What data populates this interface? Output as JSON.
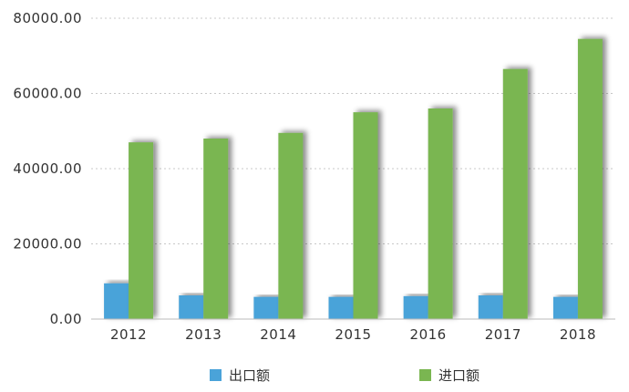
{
  "chart_data": {
    "type": "bar",
    "title": "",
    "xlabel": "",
    "ylabel": "",
    "categories": [
      "2012",
      "2013",
      "2014",
      "2015",
      "2016",
      "2017",
      "2018"
    ],
    "series": [
      {
        "name": "出口额",
        "color": "#4aa3d9",
        "values": [
          9500,
          6300,
          5900,
          5900,
          6100,
          6300,
          5900
        ]
      },
      {
        "name": "进口额",
        "color": "#7ab651",
        "values": [
          47000,
          48000,
          49500,
          55000,
          56000,
          66500,
          74500
        ]
      }
    ],
    "ylim": [
      0,
      80000
    ],
    "yticks": [
      "0.00",
      "20000.00",
      "40000.00",
      "60000.00",
      "80000.00"
    ],
    "grid": true,
    "legend_position": "bottom"
  }
}
